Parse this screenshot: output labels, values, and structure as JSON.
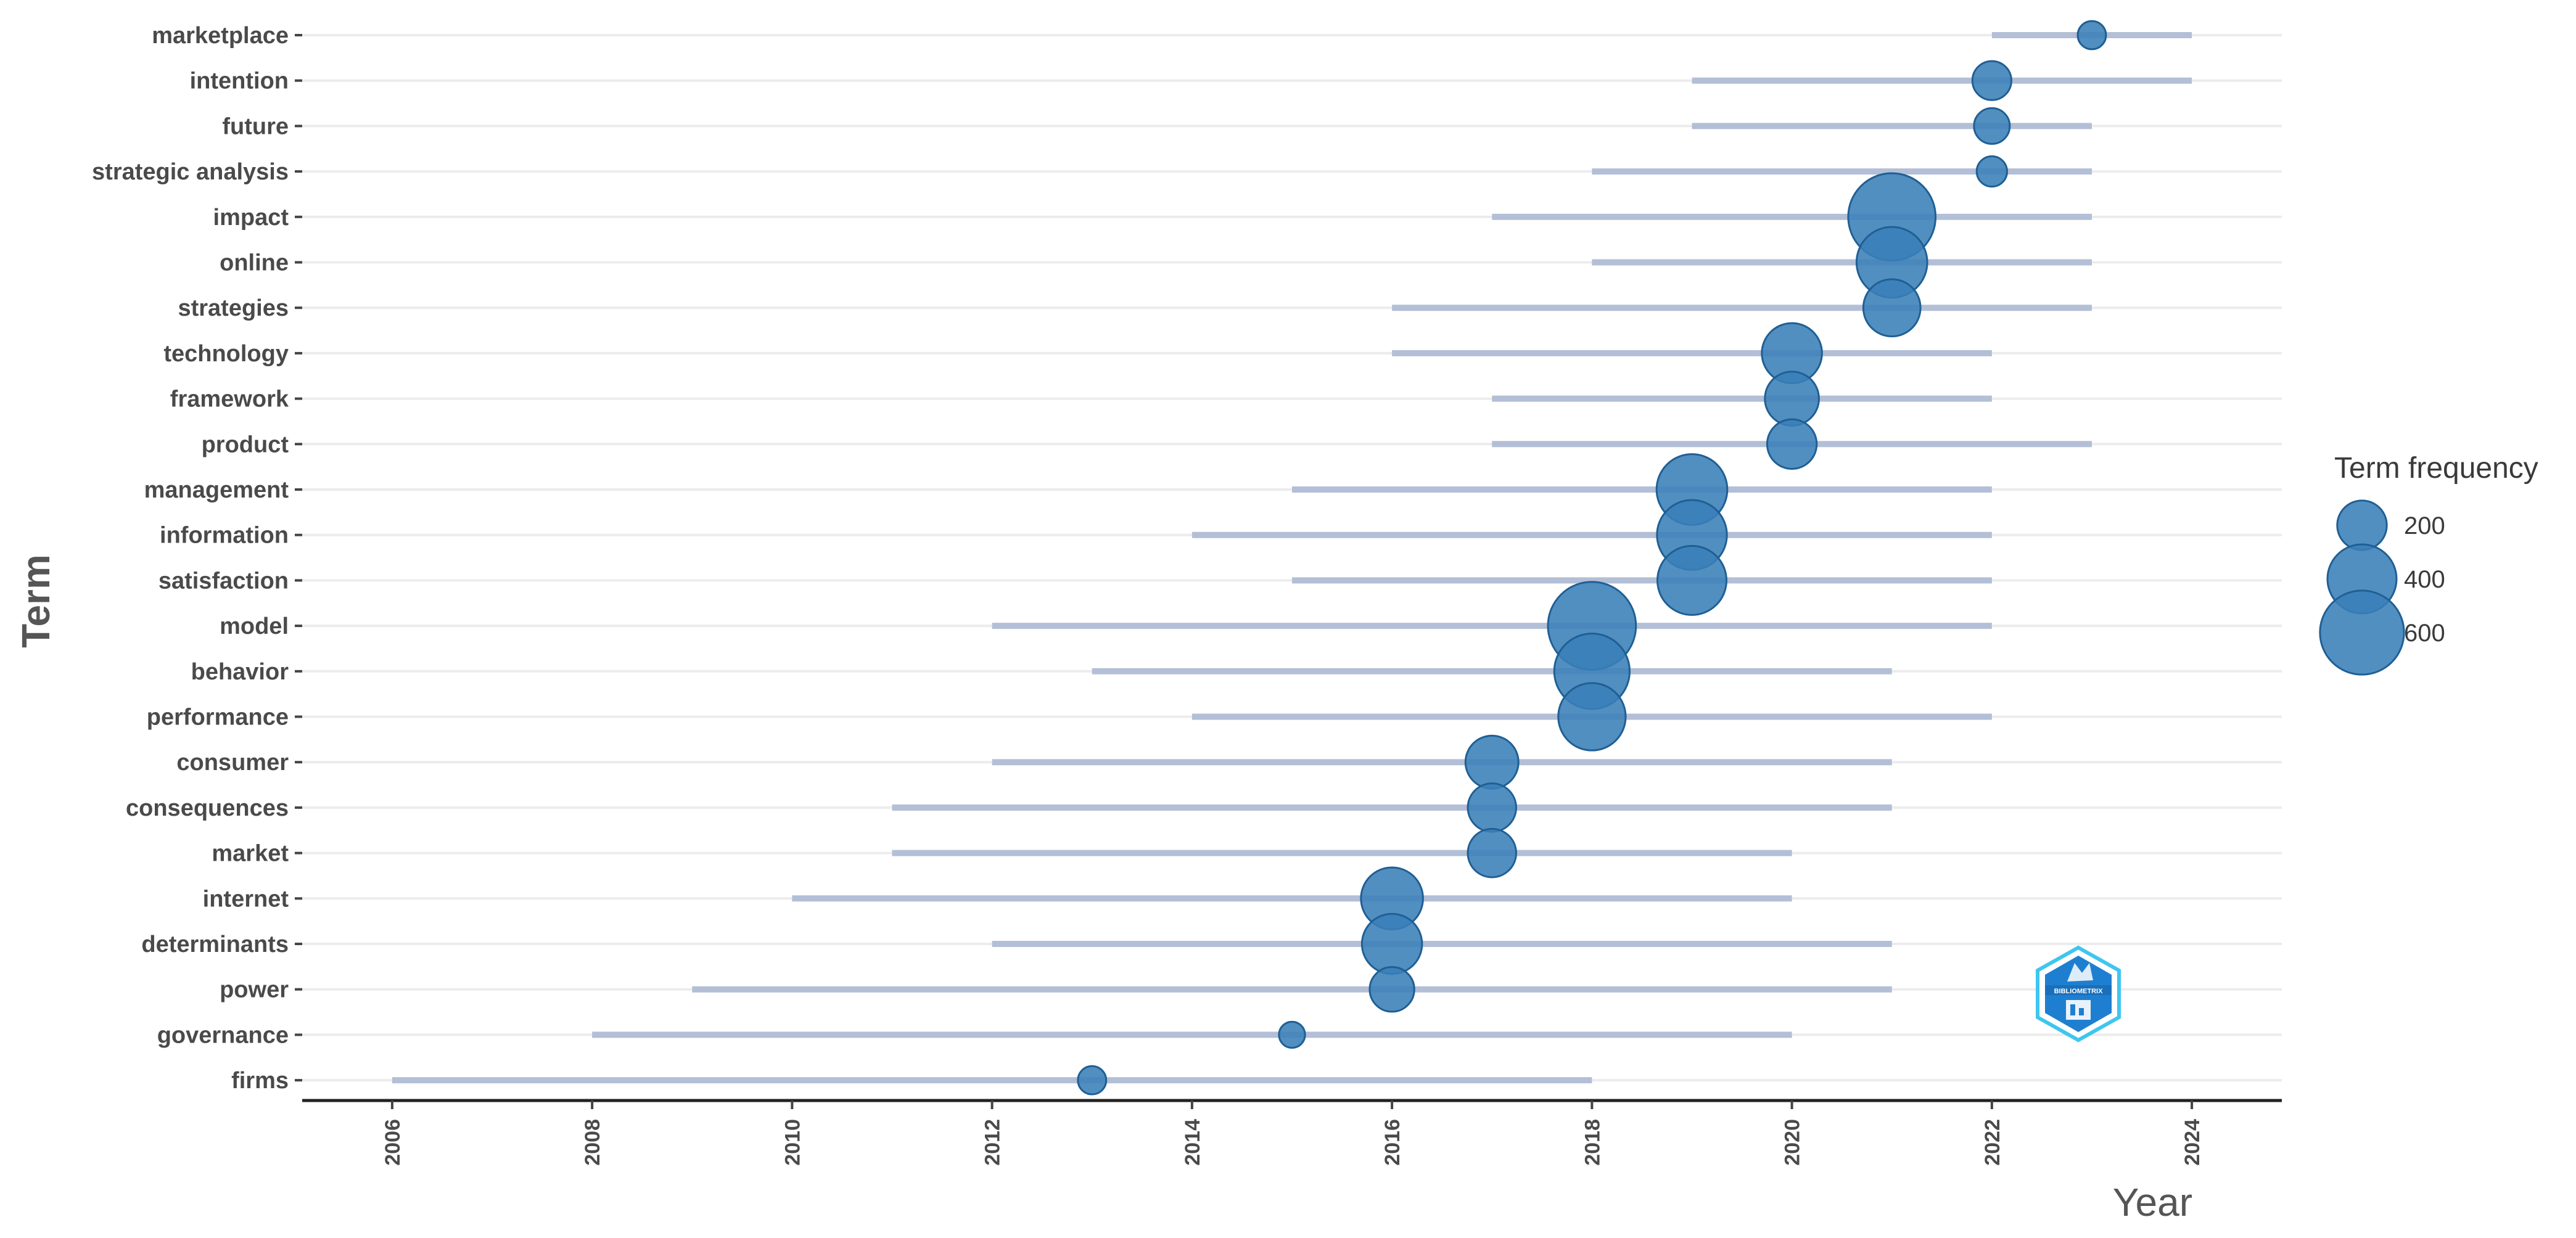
{
  "chart_data": {
    "type": "scatter",
    "title": "",
    "xlabel": "Year",
    "ylabel": "Term",
    "xlim": [
      2005.1,
      2024.9
    ],
    "x_ticks": [
      2006,
      2008,
      2010,
      2012,
      2014,
      2016,
      2018,
      2020,
      2022,
      2024
    ],
    "terms": [
      {
        "term": "marketplace",
        "start": 2022,
        "median": 2023,
        "end": 2024,
        "freq": 60
      },
      {
        "term": "intention",
        "start": 2019,
        "median": 2022,
        "end": 2024,
        "freq": 120
      },
      {
        "term": "future",
        "start": 2019,
        "median": 2022,
        "end": 2023,
        "freq": 100
      },
      {
        "term": "strategic analysis",
        "start": 2018,
        "median": 2022,
        "end": 2023,
        "freq": 70
      },
      {
        "term": "impact",
        "start": 2017,
        "median": 2021,
        "end": 2023,
        "freq": 650
      },
      {
        "term": "online",
        "start": 2018,
        "median": 2021,
        "end": 2023,
        "freq": 420
      },
      {
        "term": "strategies",
        "start": 2016,
        "median": 2021,
        "end": 2023,
        "freq": 270
      },
      {
        "term": "technology",
        "start": 2016,
        "median": 2020,
        "end": 2022,
        "freq": 300
      },
      {
        "term": "framework",
        "start": 2017,
        "median": 2020,
        "end": 2022,
        "freq": 240
      },
      {
        "term": "product",
        "start": 2017,
        "median": 2020,
        "end": 2023,
        "freq": 200
      },
      {
        "term": "management",
        "start": 2015,
        "median": 2019,
        "end": 2022,
        "freq": 420
      },
      {
        "term": "information",
        "start": 2014,
        "median": 2019,
        "end": 2022,
        "freq": 410
      },
      {
        "term": "satisfaction",
        "start": 2015,
        "median": 2019,
        "end": 2022,
        "freq": 400
      },
      {
        "term": "model",
        "start": 2012,
        "median": 2018,
        "end": 2022,
        "freq": 660
      },
      {
        "term": "behavior",
        "start": 2013,
        "median": 2018,
        "end": 2021,
        "freq": 480
      },
      {
        "term": "performance",
        "start": 2014,
        "median": 2018,
        "end": 2022,
        "freq": 380
      },
      {
        "term": "consumer",
        "start": 2012,
        "median": 2017,
        "end": 2021,
        "freq": 230
      },
      {
        "term": "consequences",
        "start": 2011,
        "median": 2017,
        "end": 2021,
        "freq": 190
      },
      {
        "term": "market",
        "start": 2011,
        "median": 2017,
        "end": 2020,
        "freq": 190
      },
      {
        "term": "internet",
        "start": 2010,
        "median": 2016,
        "end": 2020,
        "freq": 320
      },
      {
        "term": "determinants",
        "start": 2012,
        "median": 2016,
        "end": 2021,
        "freq": 300
      },
      {
        "term": "power",
        "start": 2009,
        "median": 2016,
        "end": 2021,
        "freq": 160
      },
      {
        "term": "governance",
        "start": 2008,
        "median": 2015,
        "end": 2020,
        "freq": 50
      },
      {
        "term": "firms",
        "start": 2006,
        "median": 2013,
        "end": 2018,
        "freq": 60
      }
    ],
    "legend": {
      "title": "Term frequency",
      "entries": [
        {
          "label": "200",
          "value": 200
        },
        {
          "label": "400",
          "value": 400
        },
        {
          "label": "600",
          "value": 600
        }
      ],
      "placement": "right"
    },
    "colors": {
      "point": "#3a80b8",
      "point_stroke": "#1f5f94",
      "range": "#b3bfd6",
      "grid": "#ececec",
      "axis": "#222222"
    }
  },
  "logo": {
    "name": "bibliometrix-logo",
    "text": "BIBLIOMETRIX",
    "colors": [
      "#1e7fd0",
      "#3ec6ef"
    ]
  }
}
